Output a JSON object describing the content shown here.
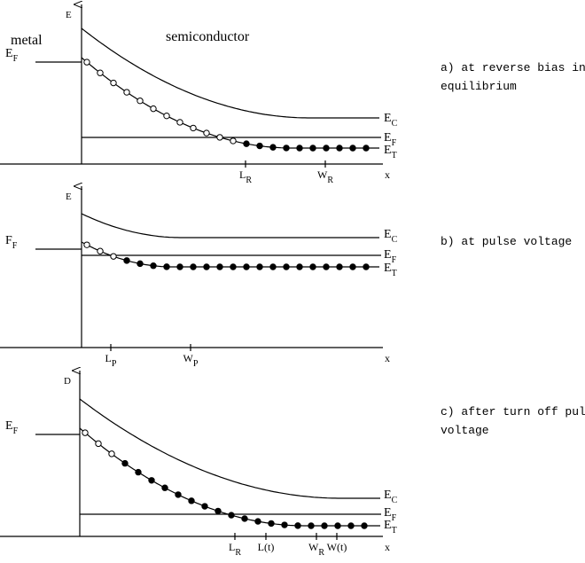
{
  "panels": [
    {
      "axis_label": "E",
      "region_labels": [
        "metal",
        "semiconductor"
      ],
      "left_level": {
        "main": "E",
        "sub": "F"
      },
      "levels": [
        {
          "main": "E",
          "sub": "C"
        },
        {
          "main": "E",
          "sub": "F"
        },
        {
          "main": "E",
          "sub": "T"
        }
      ],
      "ticks": [
        {
          "main": "L",
          "sub": "R"
        },
        {
          "main": "W",
          "sub": "R"
        }
      ],
      "x_label": "x",
      "caption": [
        "a) at reverse bias in",
        "equilibrium"
      ]
    },
    {
      "axis_label": "E",
      "region_labels": [],
      "left_level": {
        "main": "F",
        "sub": "F"
      },
      "levels": [
        {
          "main": "E",
          "sub": "C"
        },
        {
          "main": "E",
          "sub": "F"
        },
        {
          "main": "E",
          "sub": "T"
        }
      ],
      "ticks": [
        {
          "main": "L",
          "sub": "P"
        },
        {
          "main": "W",
          "sub": "P"
        }
      ],
      "x_label": "x",
      "caption": [
        "b) at pulse voltage"
      ]
    },
    {
      "axis_label": "D",
      "region_labels": [],
      "left_level": {
        "main": "E",
        "sub": "F"
      },
      "levels": [
        {
          "main": "E",
          "sub": "C"
        },
        {
          "main": "E",
          "sub": "F"
        },
        {
          "main": "E",
          "sub": "T"
        }
      ],
      "ticks": [
        {
          "main": "L",
          "sub": "R"
        },
        {
          "main": "L(t)",
          "sub": ""
        },
        {
          "main": "W",
          "sub": "R"
        },
        {
          "main": "W(t)",
          "sub": ""
        }
      ],
      "x_label": "x",
      "caption": [
        "c) after turn off pulse",
        "voltage"
      ]
    }
  ]
}
